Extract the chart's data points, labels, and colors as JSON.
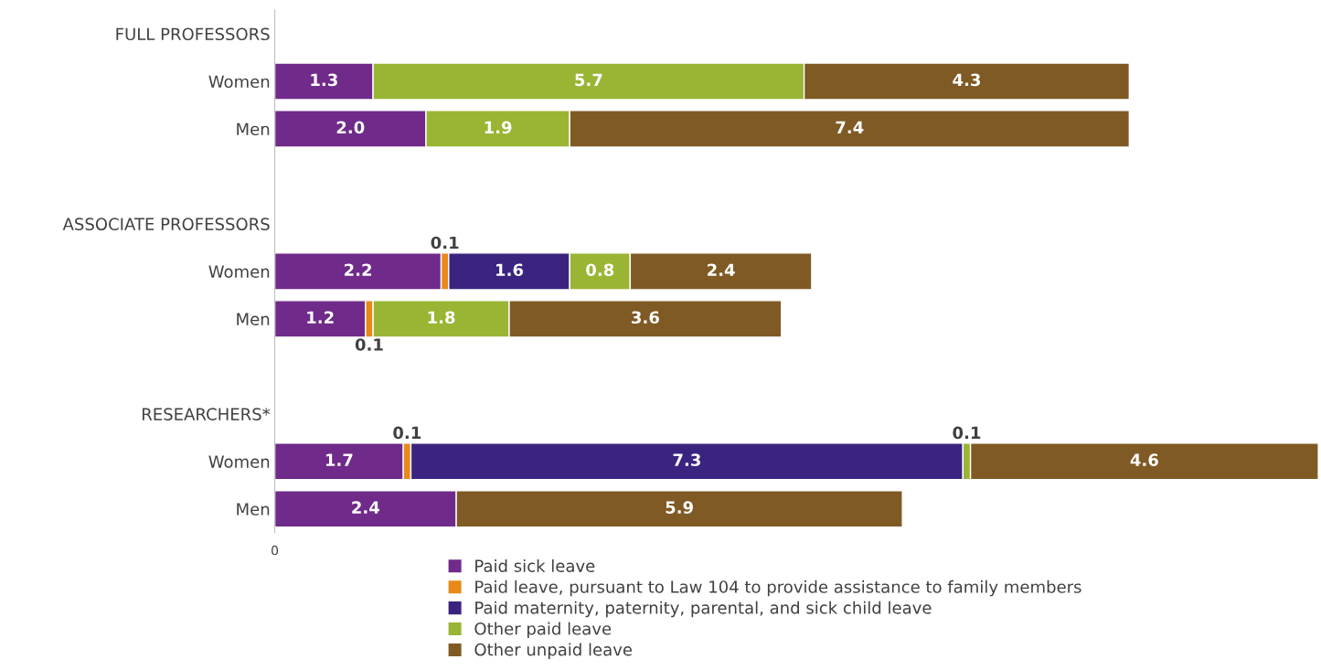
{
  "chart_data": {
    "type": "bar",
    "orientation": "horizontal",
    "stacked": true,
    "categories": [
      "FULL PROFESSORS",
      "Women",
      "Men",
      null,
      "ASSOCIATE PROFESSORS",
      "Women",
      "Men",
      null,
      "RESEARCHERS*",
      "Women",
      "Men"
    ],
    "series": [
      {
        "name": "Paid sick leave",
        "color": "#6f2a8a",
        "values": [
          null,
          1.3,
          2.0,
          null,
          null,
          2.2,
          1.2,
          null,
          null,
          1.7,
          2.4
        ],
        "value_labels": [
          null,
          "1.3",
          "2.0",
          null,
          null,
          "2.2",
          "1.2",
          null,
          null,
          "1.7",
          "2.4"
        ]
      },
      {
        "name": "Paid leave, pursuant to Law 104 to provide assistance to family members",
        "color": "#e8891a",
        "values": [
          null,
          null,
          null,
          null,
          null,
          0.1,
          0.1,
          null,
          null,
          0.1,
          null
        ],
        "value_labels": [
          null,
          null,
          null,
          null,
          null,
          "0.1",
          "0.1",
          null,
          null,
          "0.1",
          null
        ]
      },
      {
        "name": "Paid maternity, paternity, parental, and sick child leave",
        "color": "#3a2480",
        "values": [
          null,
          null,
          null,
          null,
          null,
          1.6,
          null,
          null,
          null,
          7.3,
          null
        ],
        "value_labels": [
          null,
          null,
          null,
          null,
          null,
          "1.6",
          null,
          null,
          null,
          "7.3",
          null
        ]
      },
      {
        "name": "Other paid leave",
        "color": "#9ab534",
        "values": [
          null,
          5.7,
          1.9,
          null,
          null,
          0.8,
          1.8,
          null,
          null,
          0.1,
          null
        ],
        "value_labels": [
          null,
          "5.7",
          "1.9",
          null,
          null,
          "0.8",
          "1.8",
          null,
          null,
          "0.1",
          null
        ]
      },
      {
        "name": "Other unpaid leave",
        "color": "#7f5a24",
        "values": [
          null,
          4.3,
          7.4,
          null,
          null,
          2.4,
          3.6,
          null,
          null,
          4.6,
          5.9
        ],
        "value_labels": [
          null,
          "4.3",
          "7.4",
          null,
          null,
          "2.4",
          "3.6",
          null,
          null,
          "4.6",
          "5.9"
        ]
      }
    ],
    "annotations": [
      "0"
    ],
    "grid": false,
    "legend": "bottom"
  }
}
